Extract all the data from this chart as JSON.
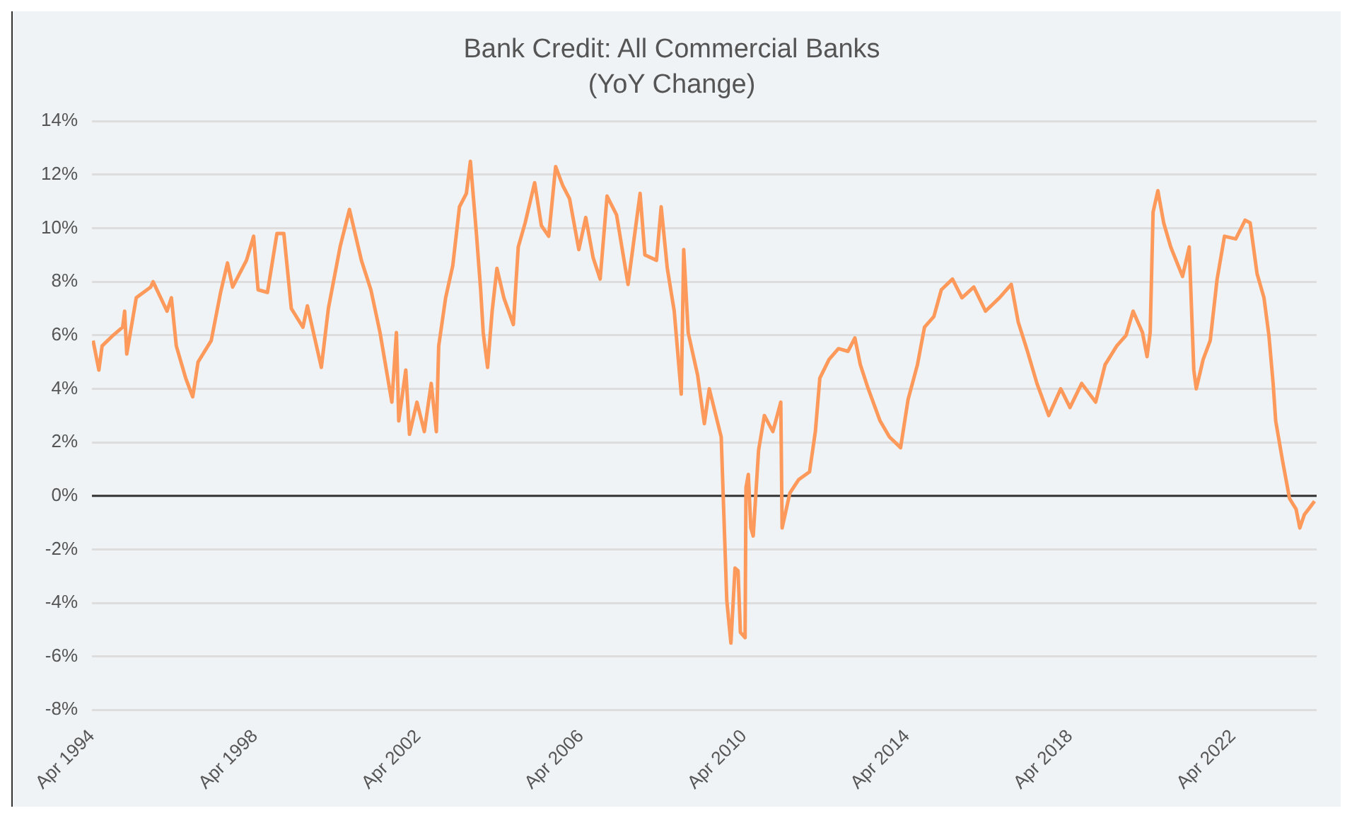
{
  "chart_data": {
    "type": "line",
    "title": "Bank Credit: All Commercial Banks",
    "subtitle": "(YoY Change)",
    "x": [
      "1994-04-11",
      "1994-06-02",
      "1994-07-01",
      "1994-10-08",
      "1995-01-01",
      "1995-01-19",
      "1995-02-07",
      "1995-05-03",
      "1995-09-09",
      "1995-10-01",
      "1996-02-03",
      "1996-03-13",
      "1996-04-26",
      "1996-07-19",
      "1996-09-20",
      "1996-11-07",
      "1997-03-05",
      "1997-05-28",
      "1997-07-29",
      "1997-09-13",
      "1998-01-15",
      "1998-03-20",
      "1998-04-29",
      "1998-07-22",
      "1998-10-15",
      "1998-12-16",
      "1999-02-21",
      "1999-06-05",
      "1999-07-15",
      "1999-11-17",
      "2000-01-19",
      "2000-05-03",
      "2000-07-26",
      "2000-11-10",
      "2001-02-03",
      "2001-04-26",
      "2001-08-10",
      "2001-09-20",
      "2001-10-11",
      "2001-12-13",
      "2002-01-15",
      "2002-03-23",
      "2002-05-28",
      "2002-07-29",
      "2002-09-13",
      "2002-10-04",
      "2002-12-05",
      "2003-02-07",
      "2003-04-08",
      "2003-06-09",
      "2003-07-15",
      "2003-09-05",
      "2003-10-15",
      "2003-11-07",
      "2003-12-16",
      "2004-01-26",
      "2004-03-09",
      "2004-05-10",
      "2004-08-03",
      "2004-09-16",
      "2004-11-17",
      "2005-02-10",
      "2005-04-11",
      "2005-06-16",
      "2005-08-17",
      "2005-10-19",
      "2005-12-20",
      "2006-03-13",
      "2006-05-14",
      "2006-07-19",
      "2006-09-20",
      "2006-11-21",
      "2007-02-14",
      "2007-05-28",
      "2007-09-13",
      "2007-10-26",
      "2008-02-07",
      "2008-03-20",
      "2008-05-14",
      "2008-07-15",
      "2008-09-16",
      "2008-10-08",
      "2008-11-17",
      "2009-02-10",
      "2009-04-11",
      "2009-05-25",
      "2009-09-09",
      "2009-10-29",
      "2009-12-05",
      "2010-01-11",
      "2010-02-07",
      "2010-02-28",
      "2010-04-11",
      "2010-04-19",
      "2010-05-10",
      "2010-06-02",
      "2010-06-23",
      "2010-08-10",
      "2010-10-01",
      "2010-12-16",
      "2011-02-25",
      "2011-03-09",
      "2011-05-17",
      "2011-08-03",
      "2011-11-10",
      "2012-01-01",
      "2012-02-10",
      "2012-05-03",
      "2012-07-26",
      "2012-10-19",
      "2012-12-20",
      "2013-02-07",
      "2013-04-19",
      "2013-08-03",
      "2013-10-26",
      "2014-02-03",
      "2014-04-11",
      "2014-07-04",
      "2014-09-05",
      "2014-11-28",
      "2015-02-03",
      "2015-05-14",
      "2015-08-07",
      "2015-11-21",
      "2016-03-05",
      "2016-07-08",
      "2016-10-22",
      "2016-12-23",
      "2017-03-16",
      "2017-06-09",
      "2017-09-23",
      "2018-01-08",
      "2018-04-01",
      "2018-07-15",
      "2018-11-17",
      "2019-02-10",
      "2019-05-25",
      "2019-08-17",
      "2019-10-19",
      "2020-01-11",
      "2020-02-21",
      "2020-03-20",
      "2020-04-15",
      "2020-05-28",
      "2020-07-19",
      "2020-09-20",
      "2021-01-04",
      "2021-03-05",
      "2021-04-15",
      "2021-05-07",
      "2021-07-08",
      "2021-09-09",
      "2021-11-10",
      "2022-01-15",
      "2022-04-26",
      "2022-07-19",
      "2022-09-02",
      "2022-11-03",
      "2023-01-04",
      "2023-02-17",
      "2023-03-27",
      "2023-04-19",
      "2023-06-20",
      "2023-08-21",
      "2023-10-19",
      "2023-11-21",
      "2024-01-01",
      "2024-02-25",
      "2024-04-01"
    ],
    "series": [
      {
        "color": "#fd9a5b",
        "values": [
          5.8,
          4.7,
          5.6,
          6.0,
          6.3,
          6.9,
          5.3,
          7.4,
          7.8,
          8.0,
          6.9,
          7.4,
          5.6,
          4.4,
          3.7,
          5.0,
          5.8,
          7.6,
          8.7,
          7.8,
          8.8,
          9.7,
          7.7,
          7.6,
          9.8,
          9.8,
          7.0,
          6.3,
          7.1,
          4.8,
          7.0,
          9.3,
          10.7,
          8.8,
          7.7,
          6.1,
          3.5,
          6.1,
          2.8,
          4.7,
          2.3,
          3.5,
          2.4,
          4.2,
          2.4,
          5.6,
          7.4,
          8.6,
          10.8,
          11.3,
          12.5,
          9.9,
          7.7,
          6.1,
          4.8,
          6.9,
          8.5,
          7.4,
          6.4,
          9.3,
          10.2,
          11.7,
          10.1,
          9.7,
          12.3,
          11.6,
          11.1,
          9.2,
          10.4,
          8.9,
          8.1,
          11.2,
          10.5,
          7.9,
          11.3,
          9.0,
          8.8,
          10.8,
          8.5,
          6.9,
          3.8,
          9.2,
          6.1,
          4.5,
          2.7,
          4.0,
          2.2,
          -3.9,
          -5.5,
          -2.7,
          -2.8,
          -5.1,
          -5.3,
          0.3,
          0.8,
          -1.2,
          -1.5,
          1.7,
          3.0,
          2.4,
          3.5,
          -1.2,
          0.1,
          0.6,
          0.9,
          2.4,
          4.4,
          5.1,
          5.5,
          5.4,
          5.9,
          4.9,
          4.0,
          2.8,
          2.2,
          1.8,
          3.6,
          4.9,
          6.3,
          6.7,
          7.7,
          8.1,
          7.4,
          7.8,
          6.9,
          7.4,
          7.9,
          6.5,
          5.4,
          4.2,
          3.0,
          4.0,
          3.3,
          4.2,
          3.5,
          4.9,
          5.6,
          6.0,
          6.9,
          6.1,
          5.2,
          6.1,
          10.6,
          11.4,
          10.2,
          9.3,
          8.2,
          9.3,
          4.7,
          4.0,
          5.1,
          5.8,
          8.1,
          9.7,
          9.6,
          10.3,
          10.2,
          8.3,
          7.4,
          6.0,
          4.2,
          2.8,
          1.3,
          -0.1,
          -0.5,
          -1.2,
          -0.7,
          -0.4,
          -0.2
        ]
      }
    ],
    "xlim": [
      "1994-04-01",
      "2024-04-20"
    ],
    "xticks": [
      {
        "value": "1994-04-01",
        "label": "Apr 1994"
      },
      {
        "value": "1998-04-01",
        "label": "Apr 1998"
      },
      {
        "value": "2002-04-01",
        "label": "Apr 2002"
      },
      {
        "value": "2006-04-01",
        "label": "Apr 2006"
      },
      {
        "value": "2010-04-01",
        "label": "Apr 2010"
      },
      {
        "value": "2014-04-01",
        "label": "Apr 2014"
      },
      {
        "value": "2018-04-01",
        "label": "Apr 2018"
      },
      {
        "value": "2022-04-01",
        "label": "Apr 2022"
      }
    ],
    "ylim": [
      -8,
      14
    ],
    "yticks": [
      {
        "value": -8,
        "label": "-8%"
      },
      {
        "value": -6,
        "label": "-6%"
      },
      {
        "value": -4,
        "label": "-4%"
      },
      {
        "value": -2,
        "label": "-2%"
      },
      {
        "value": 0,
        "label": "0%"
      },
      {
        "value": 2,
        "label": "2%"
      },
      {
        "value": 4,
        "label": "4%"
      },
      {
        "value": 6,
        "label": "6%"
      },
      {
        "value": 8,
        "label": "8%"
      },
      {
        "value": 10,
        "label": "10%"
      },
      {
        "value": 12,
        "label": "12%"
      },
      {
        "value": 14,
        "label": "14%"
      }
    ],
    "ref_lines": [
      {
        "axis": "y",
        "value": 0,
        "color": "#333333"
      }
    ],
    "grid": "y",
    "legend": false,
    "marker": "none",
    "line_style": "solid"
  }
}
